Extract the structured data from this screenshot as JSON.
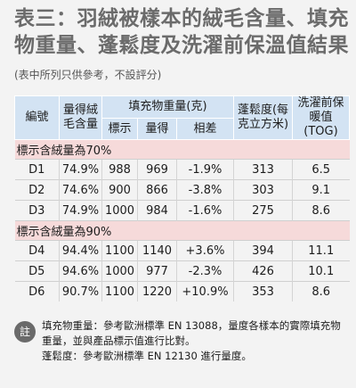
{
  "title": {
    "main": "表三：羽絨被樣本的絨毛含量、填充物重量、蓬鬆度及洗濯前保溫值結果",
    "subtitle": "(表中所列只供參考，不設評分)"
  },
  "headers": {
    "code": "編號",
    "down_content": "量得絨毛含量",
    "fill_weight": "填充物重量(克)",
    "labeled": "標示",
    "measured": "量得",
    "difference": "相差",
    "loft": "蓬鬆度(每克立方米)",
    "warmth": "洗濯前保暖值(TOG)"
  },
  "groups": [
    {
      "label": "標示含絨量為70%",
      "rows": [
        {
          "code": "D1",
          "down": "74.9%",
          "labeled": "988",
          "measured": "969",
          "diff": "-1.9%",
          "loft": "313",
          "tog": "6.5"
        },
        {
          "code": "D2",
          "down": "74.6%",
          "labeled": "900",
          "measured": "866",
          "diff": "-3.8%",
          "loft": "303",
          "tog": "9.1"
        },
        {
          "code": "D3",
          "down": "74.9%",
          "labeled": "1000",
          "measured": "984",
          "diff": "-1.6%",
          "loft": "275",
          "tog": "8.6"
        }
      ]
    },
    {
      "label": "標示含絨量為90%",
      "rows": [
        {
          "code": "D4",
          "down": "94.4%",
          "labeled": "1100",
          "measured": "1140",
          "diff": "+3.6%",
          "loft": "394",
          "tog": "11.1"
        },
        {
          "code": "D5",
          "down": "94.6%",
          "labeled": "1000",
          "measured": "977",
          "diff": "-2.3%",
          "loft": "426",
          "tog": "10.1"
        },
        {
          "code": "D6",
          "down": "90.7%",
          "labeled": "1100",
          "measured": "1220",
          "diff": "+10.9%",
          "loft": "353",
          "tog": "8.6"
        }
      ]
    }
  ],
  "note": {
    "icon": "註",
    "line1": "填充物重量：參考歐洲標準 EN 13088，量度各樣本的實際填充物重量，並與產品標示值進行比對。",
    "line2": "蓬鬆度：參考歐洲標準 EN 12130 進行量度。"
  }
}
